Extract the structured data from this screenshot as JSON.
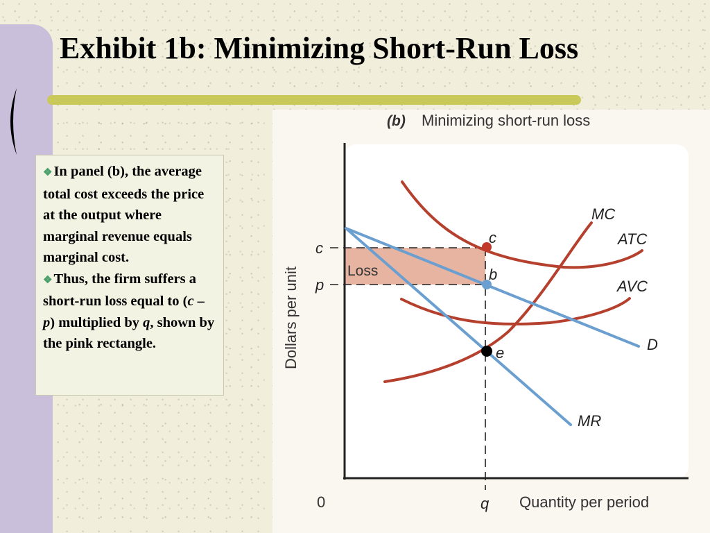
{
  "slide": {
    "title": "Exhibit 1b: Minimizing Short-Run Loss"
  },
  "textbox": {
    "bullets": [
      {
        "icon": "diamond-cluster-bullet",
        "parts": [
          "In panel (b), the average total cost exceeds the price at the output where marginal revenue equals marginal cost."
        ]
      },
      {
        "icon": "diamond-cluster-bullet",
        "parts": [
          "Thus, the firm suffers a short-run loss equal to (",
          "c",
          " – ",
          "p",
          ") multiplied by ",
          "q",
          ", shown by the pink rectangle."
        ]
      }
    ]
  },
  "figure": {
    "panel_tag": "(b)",
    "panel_title": "Minimizing short-run loss",
    "y_axis_label": "Dollars per unit",
    "x_axis_label": "Quantity per period",
    "origin_label": "0",
    "x_tick_label": "q",
    "y_tick_labels": [
      "c",
      "p"
    ],
    "curve_labels": [
      "MC",
      "ATC",
      "AVC",
      "D",
      "MR"
    ],
    "point_labels": [
      "c",
      "b",
      "e"
    ],
    "region_label": "Loss",
    "colors": {
      "cost_curves": "#b5402e",
      "revenue_curves": "#6a9fd0",
      "loss_fill": "#e8b4a2",
      "point_c": "#c0392b",
      "point_b": "#6a9fd0",
      "point_e": "#000000"
    }
  }
}
